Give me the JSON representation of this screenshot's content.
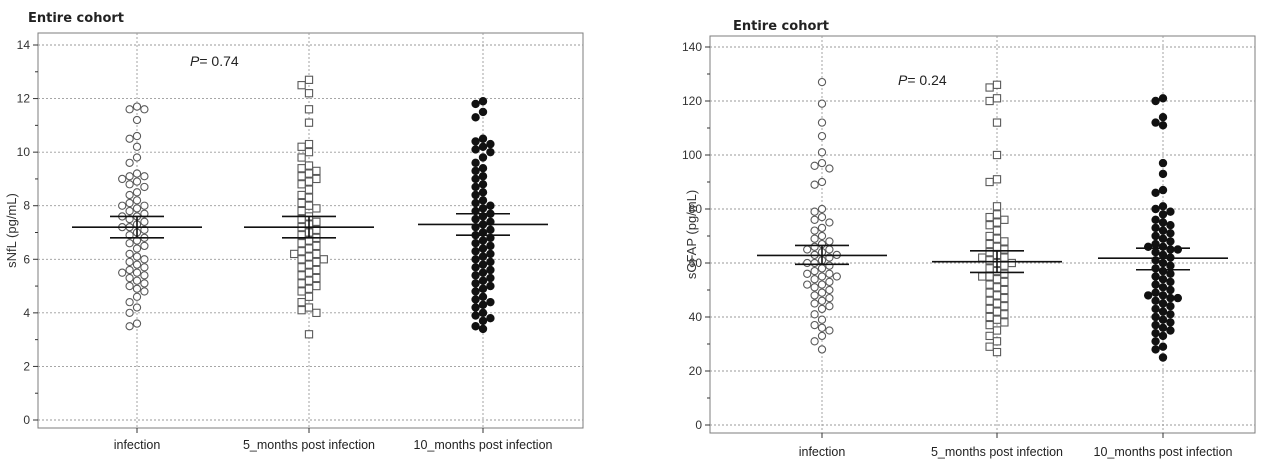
{
  "chart_data": [
    {
      "type": "scatter",
      "subtype": "dot-plot",
      "title": "Entire cohort",
      "xlabel": "",
      "ylabel": "sNfL (pg/mL)",
      "ylim": [
        0,
        14
      ],
      "yticks": [
        0,
        2,
        4,
        6,
        8,
        10,
        12,
        14
      ],
      "categories": [
        "infection",
        "5_months post infection",
        "10_months post infection"
      ],
      "annotation": {
        "label": "P",
        "text": "= 0.74"
      },
      "grid": true,
      "markers": [
        "open-circle",
        "open-square",
        "filled-circle"
      ],
      "groups": [
        {
          "category": "infection",
          "center": 7.2,
          "ci": [
            6.8,
            7.6
          ],
          "values": [
            11.7,
            11.6,
            11.6,
            11.2,
            10.6,
            10.5,
            10.2,
            9.8,
            9.6,
            9.2,
            9.1,
            9.1,
            9.0,
            8.9,
            8.8,
            8.7,
            8.5,
            8.4,
            8.2,
            8.1,
            8.0,
            8.0,
            7.9,
            7.8,
            7.7,
            7.6,
            7.6,
            7.5,
            7.4,
            7.3,
            7.2,
            7.2,
            7.1,
            7.0,
            6.9,
            6.8,
            6.7,
            6.6,
            6.5,
            6.4,
            6.2,
            6.1,
            6.0,
            5.9,
            5.8,
            5.7,
            5.6,
            5.5,
            5.5,
            5.4,
            5.3,
            5.2,
            5.1,
            5.0,
            4.9,
            4.8,
            4.6,
            4.4,
            4.2,
            4.0,
            3.6,
            3.5
          ]
        },
        {
          "category": "5_months post infection",
          "center": 7.2,
          "ci": [
            6.8,
            7.6
          ],
          "values": [
            12.7,
            12.5,
            12.2,
            11.6,
            11.1,
            10.3,
            10.2,
            10.0,
            9.8,
            9.5,
            9.4,
            9.3,
            9.2,
            9.1,
            9.0,
            8.9,
            8.8,
            8.6,
            8.4,
            8.3,
            8.1,
            8.0,
            7.9,
            7.8,
            7.6,
            7.5,
            7.4,
            7.3,
            7.2,
            7.1,
            7.0,
            6.9,
            6.8,
            6.7,
            6.6,
            6.5,
            6.4,
            6.3,
            6.2,
            6.2,
            6.1,
            6.0,
            6.0,
            5.9,
            5.8,
            5.7,
            5.6,
            5.5,
            5.4,
            5.3,
            5.2,
            5.1,
            5.0,
            4.9,
            4.8,
            4.6,
            4.4,
            4.2,
            4.1,
            4.0,
            3.2
          ]
        },
        {
          "category": "10_months post infection",
          "center": 7.3,
          "ci": [
            6.9,
            7.7
          ],
          "values": [
            11.9,
            11.8,
            11.5,
            11.3,
            10.5,
            10.4,
            10.3,
            10.2,
            10.1,
            10.0,
            9.8,
            9.6,
            9.4,
            9.3,
            9.1,
            9.0,
            8.8,
            8.7,
            8.5,
            8.4,
            8.2,
            8.1,
            8.0,
            7.9,
            7.8,
            7.7,
            7.6,
            7.5,
            7.4,
            7.3,
            7.2,
            7.1,
            7.0,
            6.9,
            6.8,
            6.7,
            6.6,
            6.5,
            6.4,
            6.3,
            6.2,
            6.1,
            6.0,
            5.9,
            5.8,
            5.7,
            5.6,
            5.5,
            5.4,
            5.3,
            5.2,
            5.1,
            5.0,
            4.9,
            4.8,
            4.6,
            4.5,
            4.4,
            4.3,
            4.2,
            4.0,
            3.9,
            3.8,
            3.7,
            3.5,
            3.4
          ]
        }
      ]
    },
    {
      "type": "scatter",
      "subtype": "dot-plot",
      "title": "Entire cohort",
      "xlabel": "",
      "ylabel": "sGFAP (pg/mL)",
      "ylim": [
        0,
        140
      ],
      "yticks": [
        0,
        20,
        40,
        60,
        80,
        100,
        120,
        140
      ],
      "categories": [
        "infection",
        "5_months post infection",
        "10_months post infection"
      ],
      "annotation": {
        "label": "P",
        "text": "= 0.24"
      },
      "grid": true,
      "markers": [
        "open-circle",
        "open-square",
        "filled-circle"
      ],
      "groups": [
        {
          "category": "infection",
          "center": 62.8,
          "ci": [
            59.5,
            66.5
          ],
          "values": [
            127,
            119,
            112,
            107,
            101,
            97,
            96,
            95,
            90,
            89,
            80,
            79,
            77,
            76,
            75,
            73,
            72,
            70,
            69,
            68,
            67,
            66,
            65,
            65,
            64,
            63,
            63,
            62,
            61,
            60,
            60,
            59,
            58,
            57,
            56,
            56,
            55,
            55,
            54,
            53,
            52,
            52,
            51,
            50,
            49,
            48,
            47,
            46,
            45,
            44,
            43,
            41,
            39,
            37,
            36,
            35,
            33,
            31,
            28
          ]
        },
        {
          "category": "5_months post infection",
          "center": 60.5,
          "ci": [
            56.5,
            64.5
          ],
          "values": [
            126,
            125,
            121,
            120,
            112,
            100,
            91,
            90,
            81,
            78,
            77,
            76,
            75,
            74,
            72,
            70,
            69,
            68,
            67,
            66,
            65,
            64,
            63,
            62,
            62,
            61,
            60,
            60,
            59,
            58,
            57,
            56,
            55,
            55,
            54,
            53,
            52,
            51,
            50,
            49,
            48,
            47,
            46,
            45,
            44,
            43,
            42,
            41,
            40,
            39,
            38,
            37,
            35,
            33,
            31,
            29,
            27
          ]
        },
        {
          "category": "10_months post infection",
          "center": 61.8,
          "ci": [
            57.5,
            65.5
          ],
          "values": [
            121,
            120,
            114,
            112,
            111,
            97,
            93,
            87,
            86,
            81,
            80,
            79,
            78,
            76,
            75,
            74,
            73,
            72,
            71,
            70,
            69,
            68,
            67,
            66,
            66,
            65,
            65,
            64,
            63,
            62,
            61,
            60,
            59,
            58,
            57,
            56,
            55,
            54,
            53,
            52,
            51,
            50,
            49,
            48,
            48,
            47,
            47,
            46,
            45,
            44,
            43,
            42,
            41,
            40,
            39,
            38,
            37,
            36,
            35,
            34,
            33,
            31,
            29,
            28,
            25
          ]
        }
      ]
    }
  ]
}
